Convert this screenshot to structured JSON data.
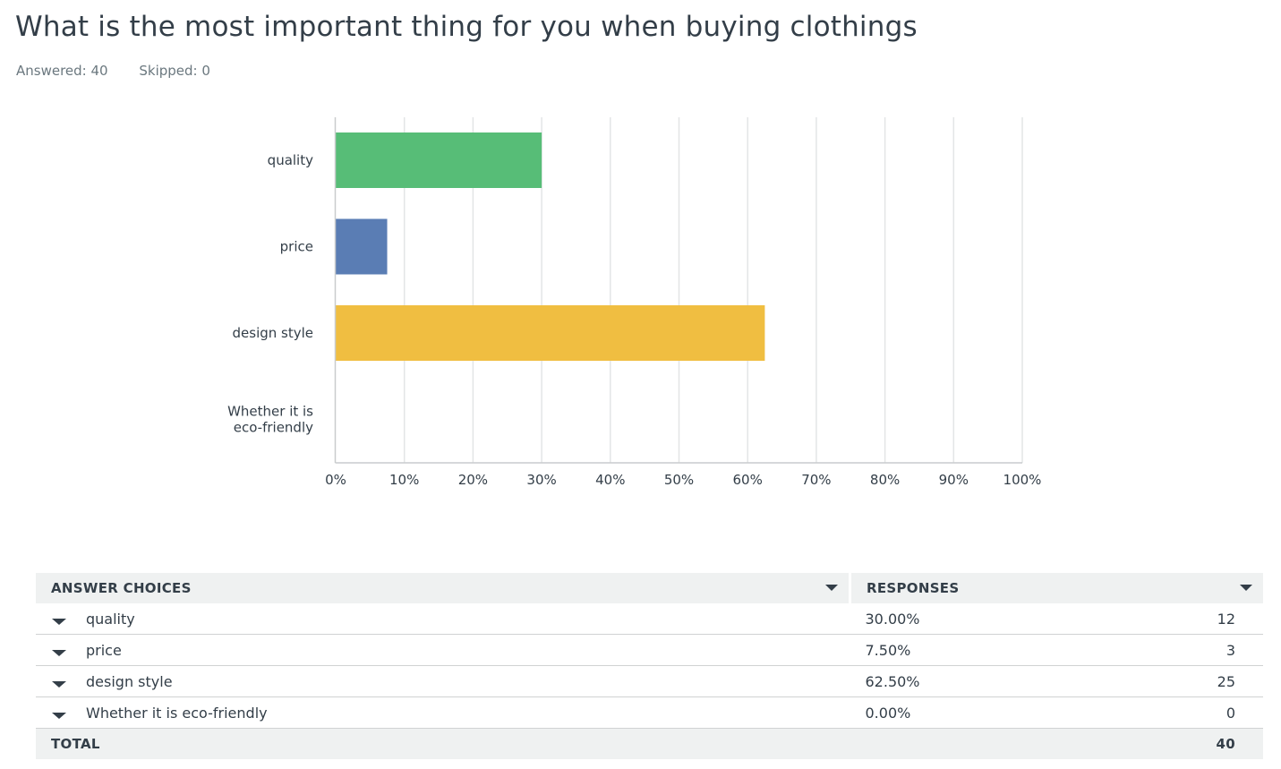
{
  "question": {
    "title": "What is the most important thing for you when buying clothings",
    "answered_label": "Answered: 40",
    "skipped_label": "Skipped: 0"
  },
  "chart_data": {
    "type": "bar",
    "orientation": "horizontal",
    "categories": [
      "quality",
      "price",
      "design style",
      "Whether it is eco-friendly"
    ],
    "values": [
      30.0,
      7.5,
      62.5,
      0.0
    ],
    "colors": [
      "#57bd77",
      "#5a7db4",
      "#f0be41",
      "#e0e0e0"
    ],
    "xlim": [
      0,
      100
    ],
    "xticks": [
      "0%",
      "10%",
      "20%",
      "30%",
      "40%",
      "50%",
      "60%",
      "70%",
      "80%",
      "90%",
      "100%"
    ],
    "grid": true,
    "title": "",
    "xlabel": "",
    "ylabel": ""
  },
  "table": {
    "headers": {
      "choices": "ANSWER CHOICES",
      "responses": "RESPONSES"
    },
    "rows": [
      {
        "choice": "quality",
        "percent": "30.00%",
        "count": "12"
      },
      {
        "choice": "price",
        "percent": "7.50%",
        "count": "3"
      },
      {
        "choice": "design style",
        "percent": "62.50%",
        "count": "25"
      },
      {
        "choice": "Whether it is eco-friendly",
        "percent": "0.00%",
        "count": "0"
      }
    ],
    "total_label": "TOTAL",
    "total_count": "40"
  }
}
